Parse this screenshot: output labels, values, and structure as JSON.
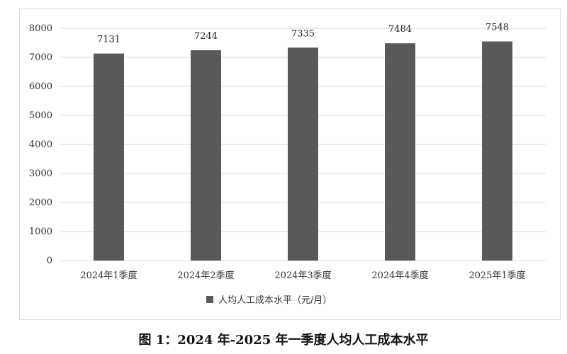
{
  "chart_data": {
    "type": "bar",
    "categories": [
      "2024年1季度",
      "2024年2季度",
      "2024年3季度",
      "2024年4季度",
      "2025年1季度"
    ],
    "series": [
      {
        "name": "人均人工成本水平（元/月）",
        "values": [
          7131,
          7244,
          7335,
          7484,
          7548
        ]
      }
    ],
    "data_labels": [
      "7131",
      "7244",
      "7335",
      "7484",
      "7548"
    ],
    "y_ticks": [
      0,
      1000,
      2000,
      3000,
      4000,
      5000,
      6000,
      7000,
      8000
    ],
    "ylim": [
      0,
      8000
    ],
    "grid": true,
    "legend_position": "bottom",
    "bar_color": "#595959",
    "grid_color": "#d9d9d9"
  },
  "legend": {
    "label": "人均人工成本水平（元/月）"
  },
  "caption": "图 1：2024 年-2025 年一季度人均人工成本水平"
}
